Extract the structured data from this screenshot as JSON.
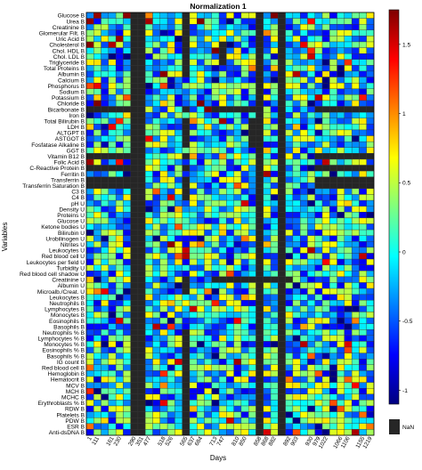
{
  "chart_data": {
    "type": "heatmap",
    "title": "Normalization 1",
    "xlabel": "Days",
    "ylabel": "Variables",
    "x_ticks": [
      "1",
      "111",
      "161",
      "230",
      "290",
      "351",
      "477",
      "518",
      "526",
      "565",
      "637",
      "684",
      "713",
      "747",
      "810",
      "850",
      "858",
      "868",
      "882",
      "892",
      "903",
      "930",
      "979",
      "1022",
      "1066",
      "1106",
      "1155",
      "1219"
    ],
    "n_columns": 39,
    "rows": [
      "Glucose B",
      "Urea B",
      "Creatinine B",
      "Glomerular Filt. B",
      "Uric Acid B",
      "Cholesterol B",
      "Chol. HDL B",
      "Chol. LDL B",
      "Triglyceride B",
      "Total Proteins B",
      "Albumin B",
      "Calcium B",
      "Phosphorus B",
      "Sodium B",
      "Potassium B",
      "Chloride B",
      "Bicarbonate B",
      "Iron B",
      "Total Bilirubin B",
      "LDH B",
      "ALTGPT B",
      "ASTGOT B",
      "Fosfatase Alkaline B",
      "GGT B",
      "Vitamin B12 B",
      "Folic Acid B",
      "C-Reactive Protein B",
      "Ferritin B",
      "Transferrin B",
      "Transferrin Saturation B",
      "C3 B",
      "C4 B",
      "pH U",
      "Density U",
      "Proteins U",
      "Glucose U",
      "Ketone bodies U",
      "Bilirubin U",
      "Urobilinogen U",
      "Nitrites U",
      "Leukocytes U",
      "Red blood cell U",
      "Leukocytes per field U",
      "Turbidity U",
      "Red blood cell shadow U",
      "Creatinine U",
      "Albumin U",
      "Microalb./Creat. U",
      "Leukocytes B",
      "Neutrophils B",
      "Lymphocytes B",
      "Monocytes B",
      "Eosinophils B",
      "Basophils B",
      "Neutrophils % B",
      "Lymphocytes % B",
      "Monocytes % B",
      "Eosinophils % B",
      "Basophils % B",
      "IG count B",
      "Red blood cell B",
      "Hemoglobin B",
      "Hematocrit B",
      "MCV B",
      "MCH B",
      "MCHC B",
      "Erythroblasts % B",
      "RDW B",
      "Platelets B",
      "PDW B",
      "ESR B",
      "Anti-dsDNA B"
    ],
    "colorbar": {
      "min": -1.1,
      "max": 1.75,
      "ticks": [
        1.5,
        1,
        0.5,
        0,
        -0.5,
        -1
      ],
      "stops": [
        "#00007f",
        "#0000ff",
        "#007fff",
        "#00ffff",
        "#7fff7f",
        "#ffff00",
        "#ff7f00",
        "#ff0000",
        "#7f0000"
      ],
      "nan_color": "#262626",
      "nan_label": "NaN"
    },
    "grid": true
  }
}
